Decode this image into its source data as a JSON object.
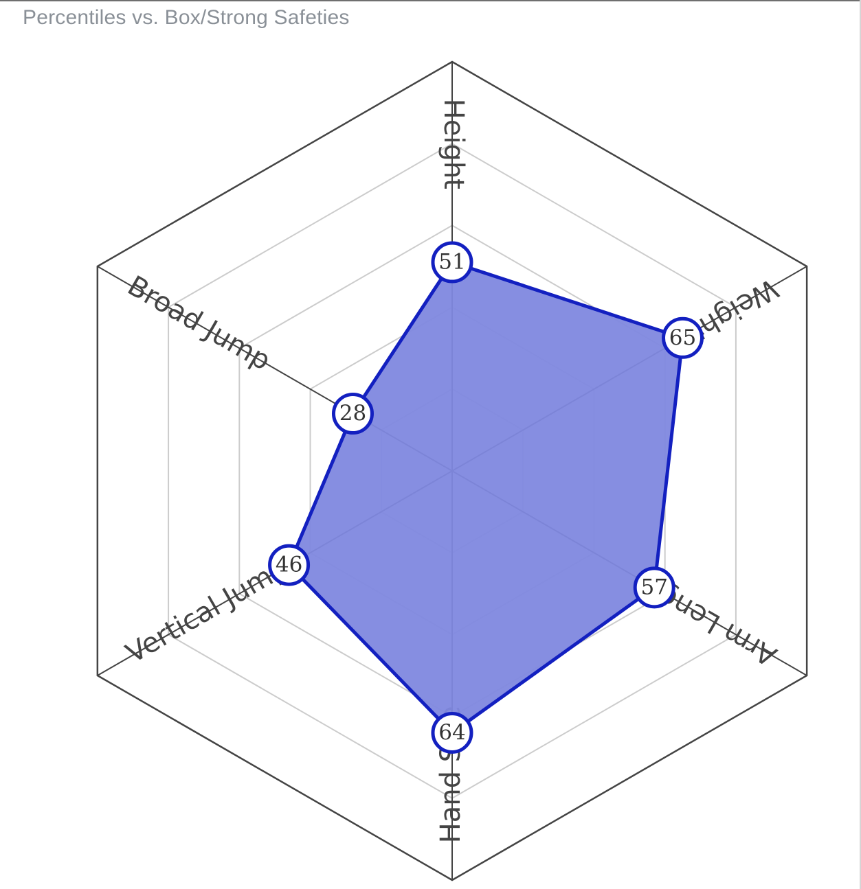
{
  "title": "Percentiles vs. Box/Strong Safeties",
  "chart_data": {
    "type": "radar",
    "title": "Percentiles vs. Box/Strong Safeties",
    "axes": [
      "Height",
      "Weight",
      "Arm Length",
      "Hand Size",
      "Vertical Jump",
      "Broad Jump"
    ],
    "values": [
      51,
      65,
      57,
      64,
      46,
      28
    ],
    "range": [
      0,
      100
    ],
    "rings": 5,
    "colors": {
      "fill": "#8088df",
      "stroke": "#1320c0",
      "frame": "#444444",
      "grid": "#cccccc"
    }
  }
}
